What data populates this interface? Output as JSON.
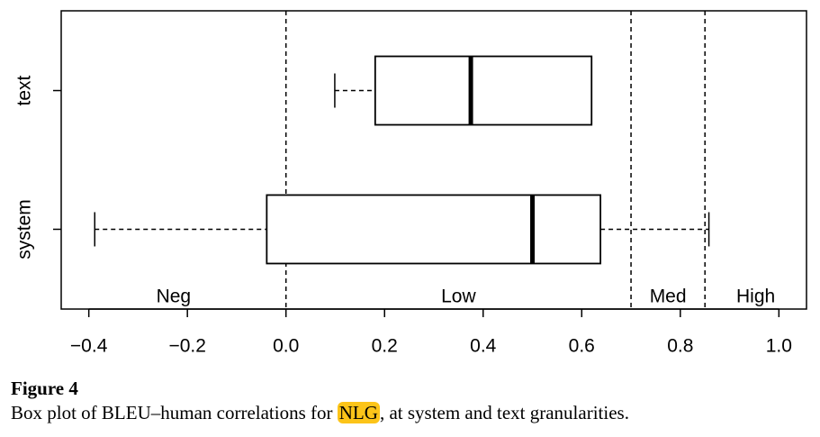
{
  "chart_data": {
    "type": "boxplot",
    "series": [
      {
        "name": "system",
        "min": -0.388,
        "q1": -0.039,
        "median": 0.5,
        "q3": 0.638,
        "max": 0.858
      },
      {
        "name": "text",
        "min": 0.099,
        "q1": 0.181,
        "median": 0.375,
        "q3": 0.62,
        "max": 0.62
      }
    ],
    "xlim": [
      -0.456,
      1.056
    ],
    "xticks": [
      {
        "value": -0.4,
        "label": "−0.4"
      },
      {
        "value": -0.2,
        "label": "−0.2"
      },
      {
        "value": 0,
        "label": "0.0"
      },
      0.2,
      0.4,
      0.6,
      0.8,
      {
        "value": 1,
        "label": "1.0"
      }
    ],
    "thresholds": [
      0,
      0.7,
      0.85
    ],
    "region_labels": [
      "Neg",
      "Low",
      "Med",
      "High"
    ]
  },
  "caption": {
    "label": "Figure 4",
    "text_before": "Box plot of BLEU–human correlations for ",
    "highlight": "NLG",
    "text_after": ", at system and text granularities."
  }
}
